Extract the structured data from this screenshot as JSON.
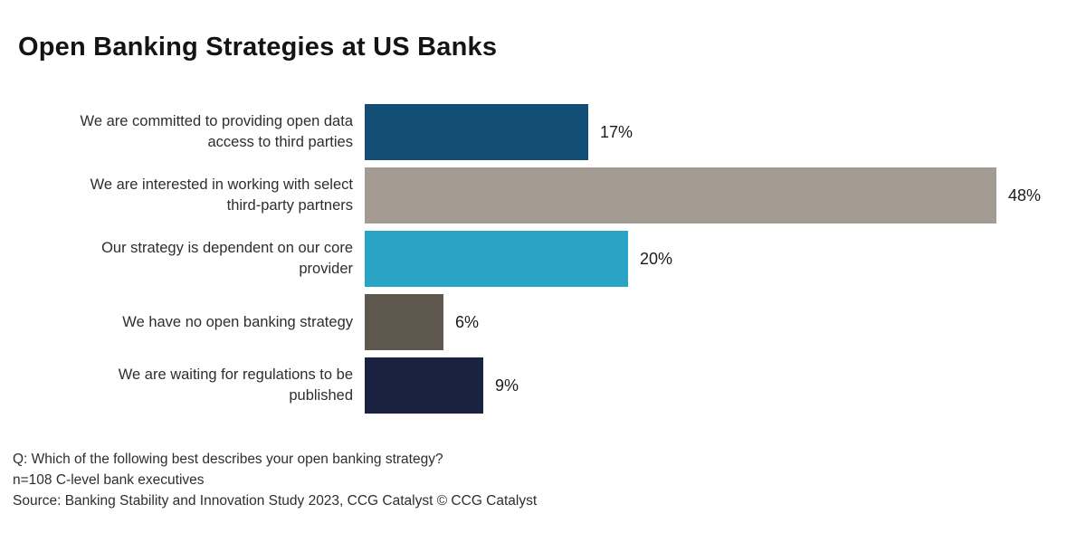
{
  "title": "Open Banking Strategies at US Banks",
  "footer": {
    "question": "Q: Which of the following best describes your open banking strategy?",
    "sample": "n=108 C-level bank executives",
    "source": "Source: Banking Stability and Innovation Study 2023, CCG Catalyst © CCG Catalyst"
  },
  "chart_data": {
    "type": "bar",
    "orientation": "horizontal",
    "title": "Open Banking Strategies at US Banks",
    "categories": [
      "We are committed to providing open data access to third parties",
      "We are interested in working with select third-party partners",
      "Our strategy is dependent on our core provider",
      "We have no open banking strategy",
      "We are waiting for regulations to be published"
    ],
    "values": [
      17,
      48,
      20,
      6,
      9
    ],
    "value_labels": [
      "17%",
      "48%",
      "20%",
      "6%",
      "9%"
    ],
    "unit": "%",
    "bar_colors": [
      "#124E76",
      "#A39A91",
      "#29A4C7",
      "#5F584F",
      "#192240"
    ],
    "xlim": [
      0,
      48
    ],
    "grid": false,
    "legend": false
  }
}
